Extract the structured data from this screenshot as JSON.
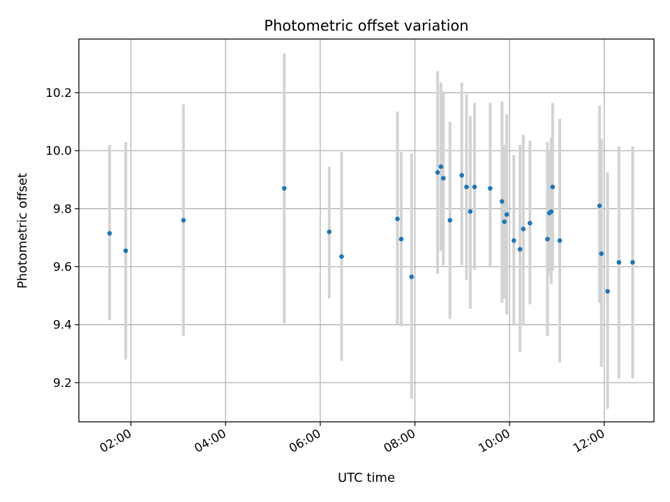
{
  "chart_data": {
    "type": "scatter",
    "title": "Photometric offset variation",
    "xlabel": "UTC time",
    "ylabel": "Photometric offset",
    "x_unit": "hours UTC",
    "xlim": [
      0.9,
      13.05
    ],
    "ylim": [
      9.065,
      10.385
    ],
    "x_ticks": [
      {
        "value": 2,
        "label": "02:00"
      },
      {
        "value": 4,
        "label": "04:00"
      },
      {
        "value": 6,
        "label": "06:00"
      },
      {
        "value": 8,
        "label": "08:00"
      },
      {
        "value": 10,
        "label": "10:00"
      },
      {
        "value": 12,
        "label": "12:00"
      }
    ],
    "y_ticks": [
      {
        "value": 9.2,
        "label": "9.2"
      },
      {
        "value": 9.4,
        "label": "9.4"
      },
      {
        "value": 9.6,
        "label": "9.6"
      },
      {
        "value": 9.8,
        "label": "9.8"
      },
      {
        "value": 10.0,
        "label": "10.0"
      },
      {
        "value": 10.2,
        "label": "10.2"
      }
    ],
    "grid": true,
    "marker_color": "#1f77b4",
    "errorbar_color": "#d3d3d3",
    "points": [
      {
        "x": 1.55,
        "y": 9.715,
        "lo": 9.415,
        "hi": 10.02
      },
      {
        "x": 1.89,
        "y": 9.655,
        "lo": 9.28,
        "hi": 10.03
      },
      {
        "x": 3.11,
        "y": 9.76,
        "lo": 9.36,
        "hi": 10.16
      },
      {
        "x": 5.24,
        "y": 9.87,
        "lo": 9.405,
        "hi": 10.335
      },
      {
        "x": 6.19,
        "y": 9.72,
        "lo": 9.49,
        "hi": 9.945
      },
      {
        "x": 6.45,
        "y": 9.635,
        "lo": 9.275,
        "hi": 9.995
      },
      {
        "x": 7.63,
        "y": 9.765,
        "lo": 9.4,
        "hi": 10.135
      },
      {
        "x": 7.71,
        "y": 9.695,
        "lo": 9.395,
        "hi": 9.995
      },
      {
        "x": 7.93,
        "y": 9.565,
        "lo": 9.145,
        "hi": 9.99
      },
      {
        "x": 8.48,
        "y": 9.925,
        "lo": 9.575,
        "hi": 10.275
      },
      {
        "x": 8.55,
        "y": 9.945,
        "lo": 9.655,
        "hi": 10.235
      },
      {
        "x": 8.6,
        "y": 9.905,
        "lo": 9.605,
        "hi": 10.205
      },
      {
        "x": 8.74,
        "y": 9.76,
        "lo": 9.42,
        "hi": 10.1
      },
      {
        "x": 8.99,
        "y": 9.915,
        "lo": 9.605,
        "hi": 10.235
      },
      {
        "x": 9.09,
        "y": 9.875,
        "lo": 9.555,
        "hi": 10.195
      },
      {
        "x": 9.17,
        "y": 9.79,
        "lo": 9.455,
        "hi": 10.12
      },
      {
        "x": 9.26,
        "y": 9.875,
        "lo": 9.59,
        "hi": 10.165
      },
      {
        "x": 9.59,
        "y": 9.87,
        "lo": 9.6,
        "hi": 10.165
      },
      {
        "x": 9.84,
        "y": 9.825,
        "lo": 9.475,
        "hi": 10.17
      },
      {
        "x": 9.89,
        "y": 9.755,
        "lo": 9.49,
        "hi": 10.02
      },
      {
        "x": 9.94,
        "y": 9.78,
        "lo": 9.435,
        "hi": 10.125
      },
      {
        "x": 10.09,
        "y": 9.69,
        "lo": 9.4,
        "hi": 9.985
      },
      {
        "x": 10.22,
        "y": 9.66,
        "lo": 9.305,
        "hi": 10.02
      },
      {
        "x": 10.29,
        "y": 9.73,
        "lo": 9.4,
        "hi": 10.055
      },
      {
        "x": 10.43,
        "y": 9.75,
        "lo": 9.47,
        "hi": 10.035
      },
      {
        "x": 10.8,
        "y": 9.695,
        "lo": 9.36,
        "hi": 10.03
      },
      {
        "x": 10.84,
        "y": 9.785,
        "lo": 9.57,
        "hi": 10.0
      },
      {
        "x": 10.88,
        "y": 9.79,
        "lo": 9.54,
        "hi": 10.045
      },
      {
        "x": 10.91,
        "y": 9.875,
        "lo": 9.585,
        "hi": 10.165
      },
      {
        "x": 11.06,
        "y": 9.69,
        "lo": 9.27,
        "hi": 10.11
      },
      {
        "x": 11.9,
        "y": 9.81,
        "lo": 9.475,
        "hi": 10.155
      },
      {
        "x": 11.94,
        "y": 9.645,
        "lo": 9.255,
        "hi": 10.04
      },
      {
        "x": 12.07,
        "y": 9.515,
        "lo": 9.11,
        "hi": 9.925
      },
      {
        "x": 12.31,
        "y": 9.615,
        "lo": 9.215,
        "hi": 10.015
      },
      {
        "x": 12.6,
        "y": 9.615,
        "lo": 9.215,
        "hi": 10.015
      }
    ]
  }
}
